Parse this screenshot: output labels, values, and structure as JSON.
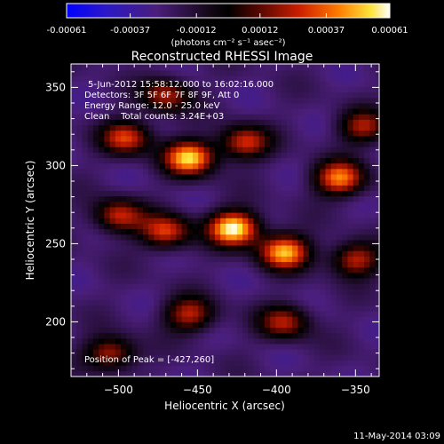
{
  "chart_data": {
    "type": "heatmap",
    "title": "Reconstructed RHESSI Image",
    "xlabel": "Heliocentric X (arcsec)",
    "ylabel": "Heliocentric Y (arcsec)",
    "xlim": [
      -530,
      -335
    ],
    "ylim": [
      165,
      365
    ],
    "x_ticks": [
      -500,
      -450,
      -400,
      -350
    ],
    "y_ticks": [
      200,
      250,
      300,
      350
    ],
    "colorbar": {
      "ticks": [
        -0.00061,
        -0.00037,
        -0.00012,
        0.00012,
        0.00037,
        0.00061
      ],
      "tick_labels": [
        "-0.00061",
        "-0.00037",
        "-0.00012",
        "0.00012",
        "0.00037",
        "0.00061"
      ],
      "unit_label": "(photons cm⁻² s⁻¹ asec⁻²)",
      "range": [
        -0.00061,
        0.00061
      ]
    },
    "annotations": [
      "5-Jun-2012 15:58:12.000 to 16:02:16.000",
      "Detectors: 3F 5F 6F 7F 8F 9F, Att 0",
      "Energy Range: 12.0 - 25.0 keV",
      "Clean    Total counts: 3.24E+03"
    ],
    "peak_label": "Position of Peak = [-427,260]",
    "peak": {
      "x": -427,
      "y": 260,
      "value": 0.00061
    },
    "sources": [
      {
        "x": -427,
        "y": 260,
        "value": 0.0006
      },
      {
        "x": -455,
        "y": 305,
        "value": 0.00052
      },
      {
        "x": -395,
        "y": 245,
        "value": 0.00048
      },
      {
        "x": -360,
        "y": 292,
        "value": 0.0004
      },
      {
        "x": -495,
        "y": 318,
        "value": 0.0003
      },
      {
        "x": -470,
        "y": 258,
        "value": 0.0003
      },
      {
        "x": -500,
        "y": 268,
        "value": 0.00026
      },
      {
        "x": -350,
        "y": 240,
        "value": 0.00026
      },
      {
        "x": -420,
        "y": 315,
        "value": 0.00028
      },
      {
        "x": -505,
        "y": 180,
        "value": 0.00024
      },
      {
        "x": -455,
        "y": 205,
        "value": 0.00024
      },
      {
        "x": -395,
        "y": 200,
        "value": 0.00022
      },
      {
        "x": -345,
        "y": 325,
        "value": 0.0002
      },
      {
        "x": -470,
        "y": 345,
        "value": 0.00022
      }
    ],
    "timestamp": "11-May-2014 03:09"
  },
  "colors": {
    "background": "#000000",
    "foreground": "#ffffff",
    "colormap": [
      "#0000ff",
      "#3a1b8a",
      "#1a0a1a",
      "#000000",
      "#5a0a00",
      "#cc2000",
      "#ff8000",
      "#ffe040",
      "#ffffff"
    ]
  }
}
